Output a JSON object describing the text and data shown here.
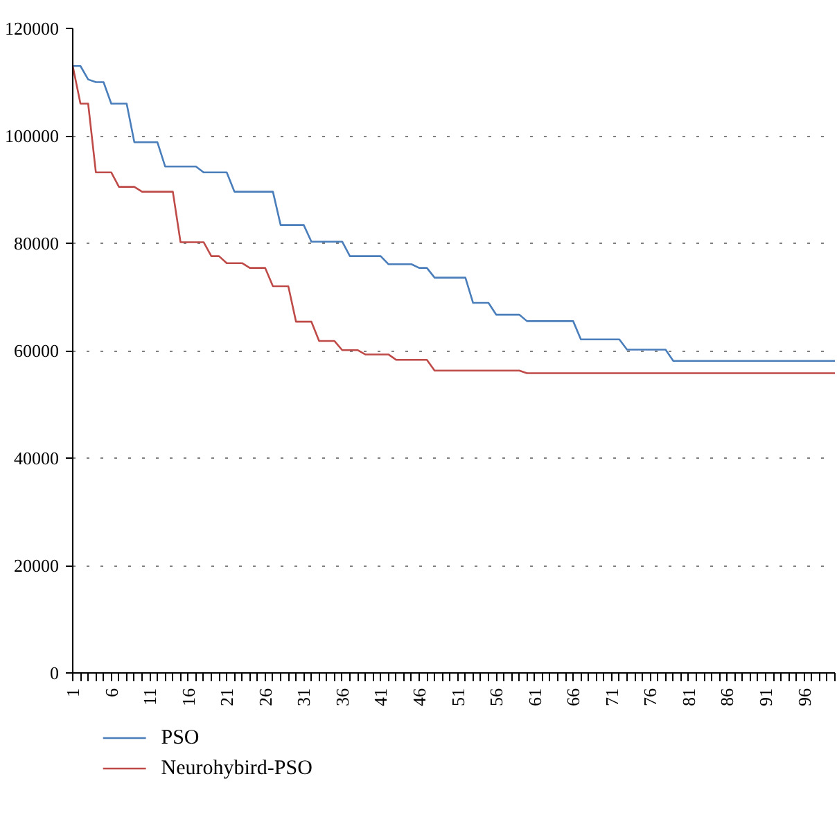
{
  "chart_data": {
    "type": "line",
    "x": [
      1,
      2,
      3,
      4,
      5,
      6,
      7,
      8,
      9,
      10,
      11,
      12,
      13,
      14,
      15,
      16,
      17,
      18,
      19,
      20,
      21,
      22,
      23,
      24,
      25,
      26,
      27,
      28,
      29,
      30,
      31,
      32,
      33,
      34,
      35,
      36,
      37,
      38,
      39,
      40,
      41,
      42,
      43,
      44,
      45,
      46,
      47,
      48,
      49,
      50,
      51,
      52,
      53,
      54,
      55,
      56,
      57,
      58,
      59,
      60,
      61,
      62,
      63,
      64,
      65,
      66,
      67,
      68,
      69,
      70,
      71,
      72,
      73,
      74,
      75,
      76,
      77,
      78,
      79,
      80,
      81,
      82,
      83,
      84,
      85,
      86,
      87,
      88,
      89,
      90,
      91,
      92,
      93,
      94,
      95,
      96,
      97,
      98,
      99,
      100
    ],
    "series": [
      {
        "name": "PSO",
        "color": "#4a7ebb",
        "values": [
          113000,
          113000,
          110500,
          110000,
          110000,
          106000,
          106000,
          106000,
          98800,
          98800,
          98800,
          98800,
          94300,
          94300,
          94300,
          94300,
          94300,
          93200,
          93200,
          93200,
          93200,
          89600,
          89600,
          89600,
          89600,
          89600,
          89600,
          83400,
          83400,
          83400,
          83400,
          80300,
          80300,
          80300,
          80300,
          80300,
          77600,
          77600,
          77600,
          77600,
          77600,
          76100,
          76100,
          76100,
          76100,
          75400,
          75400,
          73600,
          73600,
          73600,
          73600,
          73600,
          68900,
          68900,
          68900,
          66700,
          66700,
          66700,
          66700,
          65500,
          65500,
          65500,
          65500,
          65500,
          65500,
          65500,
          62100,
          62100,
          62100,
          62100,
          62100,
          62100,
          60200,
          60200,
          60200,
          60200,
          60200,
          60200,
          58100,
          58100,
          58100,
          58100,
          58100,
          58100,
          58100,
          58100,
          58100,
          58100,
          58100,
          58100,
          58100,
          58100,
          58100,
          58100,
          58100,
          58100,
          58100,
          58100,
          58100,
          58100
        ]
      },
      {
        "name": "Neurohybird-PSO",
        "color": "#be4b48",
        "values": [
          113000,
          106000,
          106000,
          93200,
          93200,
          93200,
          90500,
          90500,
          90500,
          89600,
          89600,
          89600,
          89600,
          89600,
          80200,
          80200,
          80200,
          80200,
          77600,
          77600,
          76300,
          76300,
          76300,
          75400,
          75400,
          75400,
          72000,
          72000,
          72000,
          65400,
          65400,
          65400,
          61800,
          61800,
          61800,
          60100,
          60100,
          60100,
          59300,
          59300,
          59300,
          59300,
          58300,
          58300,
          58300,
          58300,
          58300,
          56300,
          56300,
          56300,
          56300,
          56300,
          56300,
          56300,
          56300,
          56300,
          56300,
          56300,
          56300,
          55800,
          55800,
          55800,
          55800,
          55800,
          55800,
          55800,
          55800,
          55800,
          55800,
          55800,
          55800,
          55800,
          55800,
          55800,
          55800,
          55800,
          55800,
          55800,
          55800,
          55800,
          55800,
          55800,
          55800,
          55800,
          55800,
          55800,
          55800,
          55800,
          55800,
          55800,
          55800,
          55800,
          55800,
          55800,
          55800,
          55800,
          55800,
          55800,
          55800,
          55800
        ]
      }
    ],
    "xlim": [
      1,
      100
    ],
    "xticks": [
      1,
      6,
      11,
      16,
      21,
      26,
      31,
      36,
      41,
      46,
      51,
      56,
      61,
      66,
      71,
      76,
      81,
      86,
      91,
      96
    ],
    "ylim": [
      0,
      120000
    ],
    "yticks": [
      0,
      20000,
      40000,
      60000,
      80000,
      100000,
      120000
    ],
    "grid": "y",
    "legend": "bottom",
    "marker": "none",
    "line_style": "solid"
  }
}
